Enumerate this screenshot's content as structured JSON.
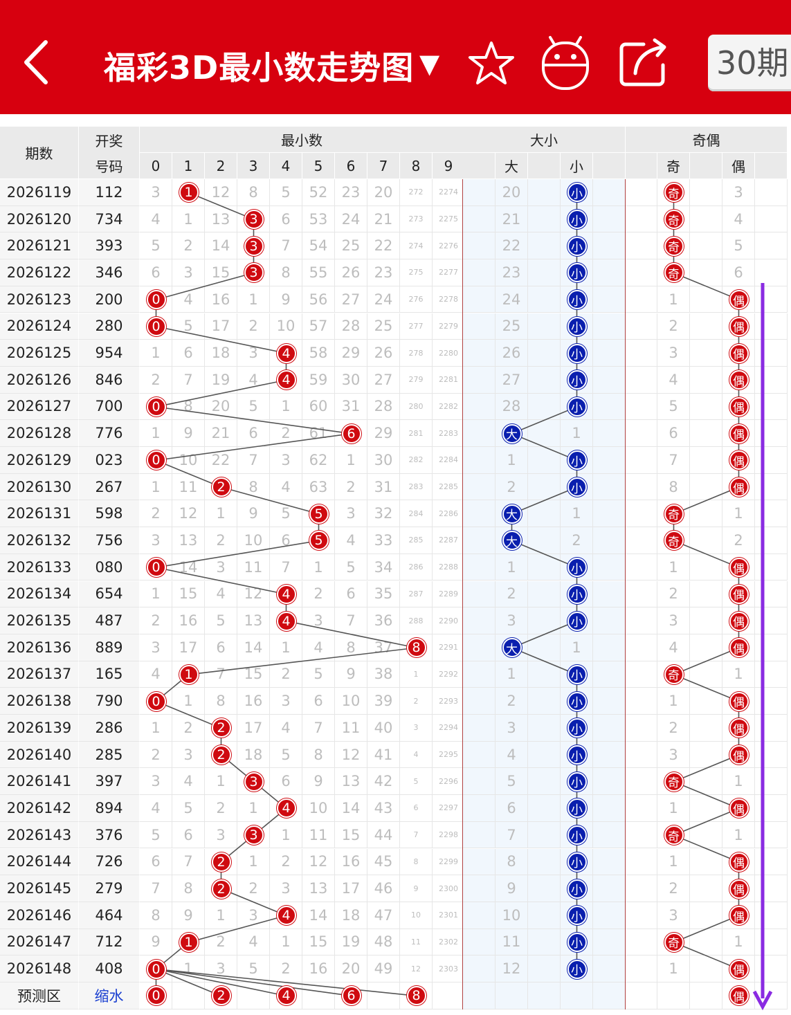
{
  "header": {
    "title": "福彩3D最小数走势图",
    "title_arrow": "▼",
    "period_button": "30期",
    "icons": [
      "back-icon",
      "star-icon",
      "android-icon",
      "share-icon"
    ],
    "brand_color": "#d7000f"
  },
  "table": {
    "col_period": "期数",
    "col_draw_line1": "开奖",
    "col_draw_line2": "号码",
    "group_min": "最小数",
    "group_size": "大小",
    "group_parity": "奇偶",
    "digit_headers": [
      "0",
      "1",
      "2",
      "3",
      "4",
      "5",
      "6",
      "7",
      "8",
      "9"
    ],
    "size_headers": [
      "大",
      "",
      "小",
      ""
    ],
    "parity_headers": [
      "",
      "奇",
      "",
      "偶",
      ""
    ],
    "big_label": "大",
    "small_label": "小",
    "odd_label": "奇",
    "even_label": "偶",
    "ball_color_red": "#cf0a10",
    "ball_color_blue": "#0a1fae",
    "rows": [
      {
        "period": "2026119",
        "draw": "112",
        "min": 1,
        "digits": [
          "3",
          "1",
          "12",
          "8",
          "5",
          "52",
          "23",
          "20",
          "272",
          "2274"
        ],
        "size": "small",
        "big_miss": "20",
        "parity": "odd",
        "even_miss": "3"
      },
      {
        "period": "2026120",
        "draw": "734",
        "min": 3,
        "digits": [
          "4",
          "1",
          "13",
          "3",
          "6",
          "53",
          "24",
          "21",
          "273",
          "2275"
        ],
        "size": "small",
        "big_miss": "21",
        "parity": "odd",
        "even_miss": "4"
      },
      {
        "period": "2026121",
        "draw": "393",
        "min": 3,
        "digits": [
          "5",
          "2",
          "14",
          "3",
          "7",
          "54",
          "25",
          "22",
          "274",
          "2276"
        ],
        "size": "small",
        "big_miss": "22",
        "parity": "odd",
        "even_miss": "5"
      },
      {
        "period": "2026122",
        "draw": "346",
        "min": 3,
        "digits": [
          "6",
          "3",
          "15",
          "3",
          "8",
          "55",
          "26",
          "23",
          "275",
          "2277"
        ],
        "size": "small",
        "big_miss": "23",
        "parity": "odd",
        "even_miss": "6"
      },
      {
        "period": "2026123",
        "draw": "200",
        "min": 0,
        "digits": [
          "0",
          "4",
          "16",
          "1",
          "9",
          "56",
          "27",
          "24",
          "276",
          "2278"
        ],
        "size": "small",
        "big_miss": "24",
        "parity": "even",
        "odd_miss": "1"
      },
      {
        "period": "2026124",
        "draw": "280",
        "min": 0,
        "digits": [
          "0",
          "5",
          "17",
          "2",
          "10",
          "57",
          "28",
          "25",
          "277",
          "2279"
        ],
        "size": "small",
        "big_miss": "25",
        "parity": "even",
        "odd_miss": "2"
      },
      {
        "period": "2026125",
        "draw": "954",
        "min": 4,
        "digits": [
          "1",
          "6",
          "18",
          "3",
          "4",
          "58",
          "29",
          "26",
          "278",
          "2280"
        ],
        "size": "small",
        "big_miss": "26",
        "parity": "even",
        "odd_miss": "3"
      },
      {
        "period": "2026126",
        "draw": "846",
        "min": 4,
        "digits": [
          "2",
          "7",
          "19",
          "4",
          "4",
          "59",
          "30",
          "27",
          "279",
          "2281"
        ],
        "size": "small",
        "big_miss": "27",
        "parity": "even",
        "odd_miss": "4"
      },
      {
        "period": "2026127",
        "draw": "700",
        "min": 0,
        "digits": [
          "0",
          "8",
          "20",
          "5",
          "1",
          "60",
          "31",
          "28",
          "280",
          "2282"
        ],
        "size": "small",
        "big_miss": "28",
        "parity": "even",
        "odd_miss": "5"
      },
      {
        "period": "2026128",
        "draw": "776",
        "min": 6,
        "digits": [
          "1",
          "9",
          "21",
          "6",
          "2",
          "61",
          "6",
          "29",
          "281",
          "2283"
        ],
        "size": "big",
        "small_miss": "1",
        "parity": "even",
        "odd_miss": "6"
      },
      {
        "period": "2026129",
        "draw": "023",
        "min": 0,
        "digits": [
          "0",
          "10",
          "22",
          "7",
          "3",
          "62",
          "1",
          "30",
          "282",
          "2284"
        ],
        "size": "small",
        "big_miss": "1",
        "parity": "even",
        "odd_miss": "7"
      },
      {
        "period": "2026130",
        "draw": "267",
        "min": 2,
        "digits": [
          "1",
          "11",
          "2",
          "8",
          "4",
          "63",
          "2",
          "31",
          "283",
          "2285"
        ],
        "size": "small",
        "big_miss": "2",
        "parity": "even",
        "odd_miss": "8"
      },
      {
        "period": "2026131",
        "draw": "598",
        "min": 5,
        "digits": [
          "2",
          "12",
          "1",
          "9",
          "5",
          "5",
          "3",
          "32",
          "284",
          "2286"
        ],
        "size": "big",
        "small_miss": "1",
        "parity": "odd",
        "even_miss": "1"
      },
      {
        "period": "2026132",
        "draw": "756",
        "min": 5,
        "digits": [
          "3",
          "13",
          "2",
          "10",
          "6",
          "5",
          "4",
          "33",
          "285",
          "2287"
        ],
        "size": "big",
        "small_miss": "2",
        "parity": "odd",
        "even_miss": "2"
      },
      {
        "period": "2026133",
        "draw": "080",
        "min": 0,
        "digits": [
          "0",
          "14",
          "3",
          "11",
          "7",
          "1",
          "5",
          "34",
          "286",
          "2288"
        ],
        "size": "small",
        "big_miss": "1",
        "parity": "even",
        "odd_miss": "1"
      },
      {
        "period": "2026134",
        "draw": "654",
        "min": 4,
        "digits": [
          "1",
          "15",
          "4",
          "12",
          "4",
          "2",
          "6",
          "35",
          "287",
          "2289"
        ],
        "size": "small",
        "big_miss": "2",
        "parity": "even",
        "odd_miss": "2"
      },
      {
        "period": "2026135",
        "draw": "487",
        "min": 4,
        "digits": [
          "2",
          "16",
          "5",
          "13",
          "4",
          "3",
          "7",
          "36",
          "288",
          "2290"
        ],
        "size": "small",
        "big_miss": "3",
        "parity": "even",
        "odd_miss": "3"
      },
      {
        "period": "2026136",
        "draw": "889",
        "min": 8,
        "digits": [
          "3",
          "17",
          "6",
          "14",
          "1",
          "4",
          "8",
          "37",
          "8",
          "2291"
        ],
        "size": "big",
        "small_miss": "1",
        "parity": "even",
        "odd_miss": "4"
      },
      {
        "period": "2026137",
        "draw": "165",
        "min": 1,
        "digits": [
          "4",
          "1",
          "7",
          "15",
          "2",
          "5",
          "9",
          "38",
          "1",
          "2292"
        ],
        "size": "small",
        "big_miss": "1",
        "parity": "odd",
        "even_miss": "1"
      },
      {
        "period": "2026138",
        "draw": "790",
        "min": 0,
        "digits": [
          "0",
          "1",
          "8",
          "16",
          "3",
          "6",
          "10",
          "39",
          "2",
          "2293"
        ],
        "size": "small",
        "big_miss": "2",
        "parity": "even",
        "odd_miss": "1"
      },
      {
        "period": "2026139",
        "draw": "286",
        "min": 2,
        "digits": [
          "1",
          "2",
          "2",
          "17",
          "4",
          "7",
          "11",
          "40",
          "3",
          "2294"
        ],
        "size": "small",
        "big_miss": "3",
        "parity": "even",
        "odd_miss": "2"
      },
      {
        "period": "2026140",
        "draw": "285",
        "min": 2,
        "digits": [
          "2",
          "3",
          "2",
          "18",
          "5",
          "8",
          "12",
          "41",
          "4",
          "2295"
        ],
        "size": "small",
        "big_miss": "4",
        "parity": "even",
        "odd_miss": "3"
      },
      {
        "period": "2026141",
        "draw": "397",
        "min": 3,
        "digits": [
          "3",
          "4",
          "1",
          "3",
          "6",
          "9",
          "13",
          "42",
          "5",
          "2296"
        ],
        "size": "small",
        "big_miss": "5",
        "parity": "odd",
        "even_miss": "1"
      },
      {
        "period": "2026142",
        "draw": "894",
        "min": 4,
        "digits": [
          "4",
          "5",
          "2",
          "1",
          "4",
          "10",
          "14",
          "43",
          "6",
          "2297"
        ],
        "size": "small",
        "big_miss": "6",
        "parity": "even",
        "odd_miss": "1"
      },
      {
        "period": "2026143",
        "draw": "376",
        "min": 3,
        "digits": [
          "5",
          "6",
          "3",
          "3",
          "1",
          "11",
          "15",
          "44",
          "7",
          "2298"
        ],
        "size": "small",
        "big_miss": "7",
        "parity": "odd",
        "even_miss": "1"
      },
      {
        "period": "2026144",
        "draw": "726",
        "min": 2,
        "digits": [
          "6",
          "7",
          "2",
          "1",
          "2",
          "12",
          "16",
          "45",
          "8",
          "2299"
        ],
        "size": "small",
        "big_miss": "8",
        "parity": "even",
        "odd_miss": "1"
      },
      {
        "period": "2026145",
        "draw": "279",
        "min": 2,
        "digits": [
          "7",
          "8",
          "2",
          "2",
          "3",
          "13",
          "17",
          "46",
          "9",
          "2300"
        ],
        "size": "small",
        "big_miss": "9",
        "parity": "even",
        "odd_miss": "2"
      },
      {
        "period": "2026146",
        "draw": "464",
        "min": 4,
        "digits": [
          "8",
          "9",
          "1",
          "3",
          "4",
          "14",
          "18",
          "47",
          "10",
          "2301"
        ],
        "size": "small",
        "big_miss": "10",
        "parity": "even",
        "odd_miss": "3"
      },
      {
        "period": "2026147",
        "draw": "712",
        "min": 1,
        "digits": [
          "9",
          "1",
          "2",
          "4",
          "1",
          "15",
          "19",
          "48",
          "11",
          "2302"
        ],
        "size": "small",
        "big_miss": "11",
        "parity": "odd",
        "even_miss": "1"
      },
      {
        "period": "2026148",
        "draw": "408",
        "min": 0,
        "digits": [
          "0",
          "1",
          "3",
          "5",
          "2",
          "16",
          "20",
          "49",
          "12",
          "2303"
        ],
        "size": "small",
        "big_miss": "12",
        "parity": "even",
        "odd_miss": "1"
      }
    ],
    "predict": {
      "label": "预测区",
      "draw_label": "缩水",
      "balls": [
        "0",
        "2",
        "4",
        "6",
        "8"
      ],
      "parity": "偶"
    }
  }
}
